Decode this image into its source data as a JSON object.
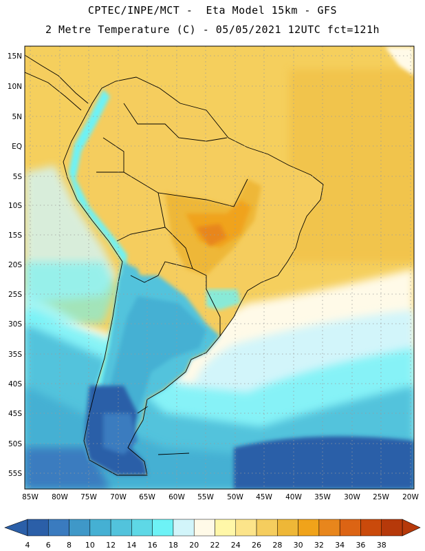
{
  "header": {
    "line1": "CPTEC/INPE/MCT -  Eta Model 15km - GFS",
    "line2": "2 Metre Temperature (C) - 05/05/2021 12UTC fct=121h"
  },
  "map": {
    "lat_labels": [
      "15N",
      "10N",
      "5N",
      "EQ",
      "5S",
      "10S",
      "15S",
      "20S",
      "25S",
      "30S",
      "35S",
      "40S",
      "45S",
      "50S",
      "55S"
    ],
    "lon_labels": [
      "85W",
      "80W",
      "75W",
      "70W",
      "65W",
      "60W",
      "55W",
      "50W",
      "45W",
      "40W",
      "35W",
      "30W",
      "25W",
      "20W"
    ],
    "lat_range": [
      17.5,
      -57.5
    ],
    "lon_range": [
      -86,
      -19.5
    ]
  },
  "colorbar": {
    "levels": [
      "4",
      "6",
      "8",
      "10",
      "12",
      "14",
      "16",
      "18",
      "20",
      "22",
      "24",
      "26",
      "28",
      "30",
      "32",
      "34",
      "36",
      "38"
    ],
    "colors": [
      "#2b5fa8",
      "#3a7bbf",
      "#3f98c8",
      "#45b0d3",
      "#52c3dc",
      "#5ed8e6",
      "#6df2f6",
      "#d2f5fa",
      "#fffae8",
      "#fff7a8",
      "#fce48a",
      "#f5cd5e",
      "#eeb737",
      "#f0a31a",
      "#e8861c",
      "#dc6414",
      "#ca4a0b",
      "#b6390a"
    ]
  },
  "colors": {
    "ocean_warm": "#f5cf5d",
    "land_hot": "#eeb737",
    "land_hotter": "#f0a31a",
    "cold_deep": "#2b5fa8",
    "border": "#000000"
  }
}
